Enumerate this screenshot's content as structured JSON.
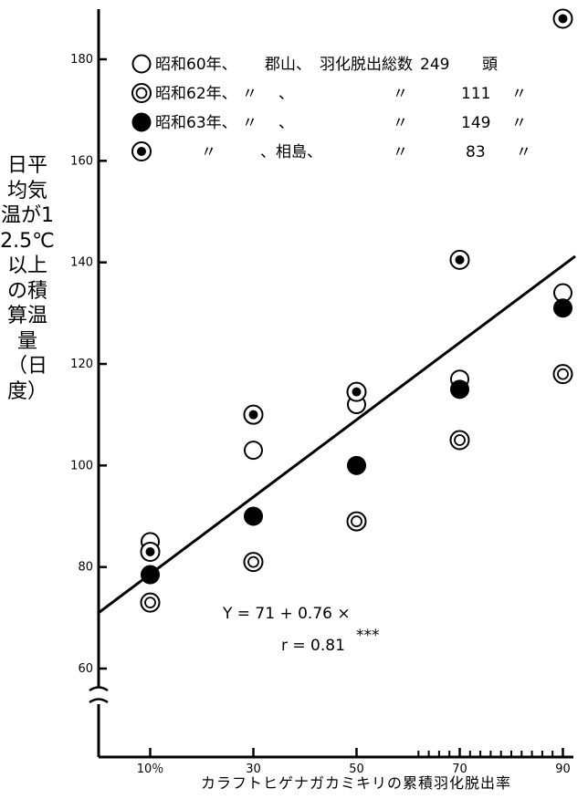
{
  "chart_data": {
    "type": "scatter",
    "ylabel": "日平均気温が12.5℃以上の積算温量（日度）",
    "xlabel": "カラフトヒゲナガカミキリの累積羽化脱出率",
    "x_ticks": [
      "10％",
      "30",
      "50",
      "70",
      "90"
    ],
    "y_ticks": [
      "60",
      "80",
      "100",
      "120",
      "140",
      "160",
      "180"
    ],
    "xlim": [
      0,
      95
    ],
    "ylim": [
      52,
      186
    ],
    "y_axis_break": true,
    "grid": false,
    "legend_position": "top-left",
    "series": [
      {
        "marker": "open",
        "legend": [
          "昭和60年、",
          "郡山、",
          "羽化脱出総数",
          "249",
          "頭"
        ],
        "x": [
          10,
          30,
          50,
          70,
          90
        ],
        "y": [
          85,
          103,
          112,
          117,
          134
        ]
      },
      {
        "marker": "double",
        "legend": [
          "昭和62年、",
          "〃",
          "、",
          "〃",
          "111",
          "〃"
        ],
        "x": [
          10,
          30,
          50,
          70,
          90
        ],
        "y": [
          73,
          81,
          89,
          105,
          118
        ]
      },
      {
        "marker": "filled",
        "legend": [
          "昭和63年、",
          "〃",
          "、",
          "〃",
          "149",
          "〃"
        ],
        "x": [
          10,
          30,
          50,
          70,
          90
        ],
        "y": [
          78.5,
          90,
          100,
          115,
          131
        ]
      },
      {
        "marker": "dotted",
        "legend": [
          "〃",
          "、相島、",
          "〃",
          "83",
          "〃"
        ],
        "x": [
          10,
          30,
          50,
          70,
          90
        ],
        "y": [
          83,
          110,
          114.5,
          140.5,
          188
        ]
      }
    ],
    "regression": {
      "intercept": 71,
      "slope": 0.76,
      "equation": "Y = 71 + 0.76 ×",
      "r_label": "r = 0.81",
      "significance": "***"
    }
  }
}
